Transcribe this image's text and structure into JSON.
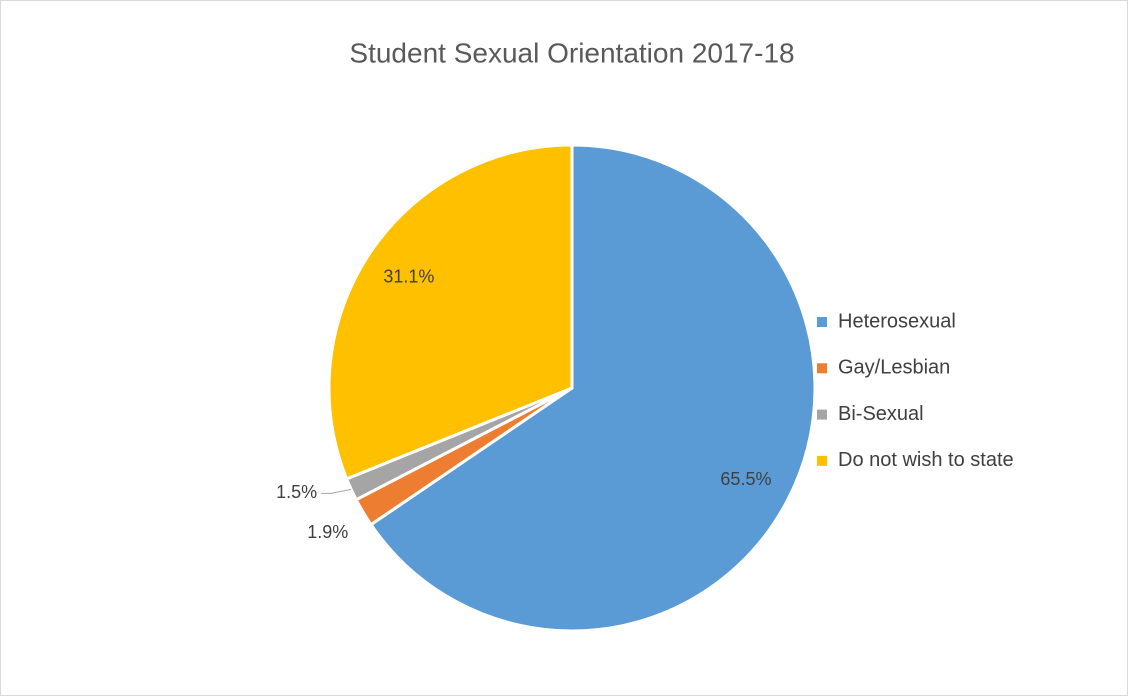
{
  "chart_data": {
    "type": "pie",
    "title": "Student Sexual Orientation 2017-18",
    "categories": [
      "Heterosexual",
      "Gay/Lesbian",
      "Bi-Sexual",
      "Do not wish to state"
    ],
    "values": [
      65.5,
      1.9,
      1.5,
      31.1
    ],
    "value_labels": [
      "65.5%",
      "1.9%",
      "1.5%",
      "31.1%"
    ],
    "colors": [
      "#5b9bd5",
      "#ed7d31",
      "#a5a5a5",
      "#ffc000"
    ],
    "legend": "right"
  }
}
